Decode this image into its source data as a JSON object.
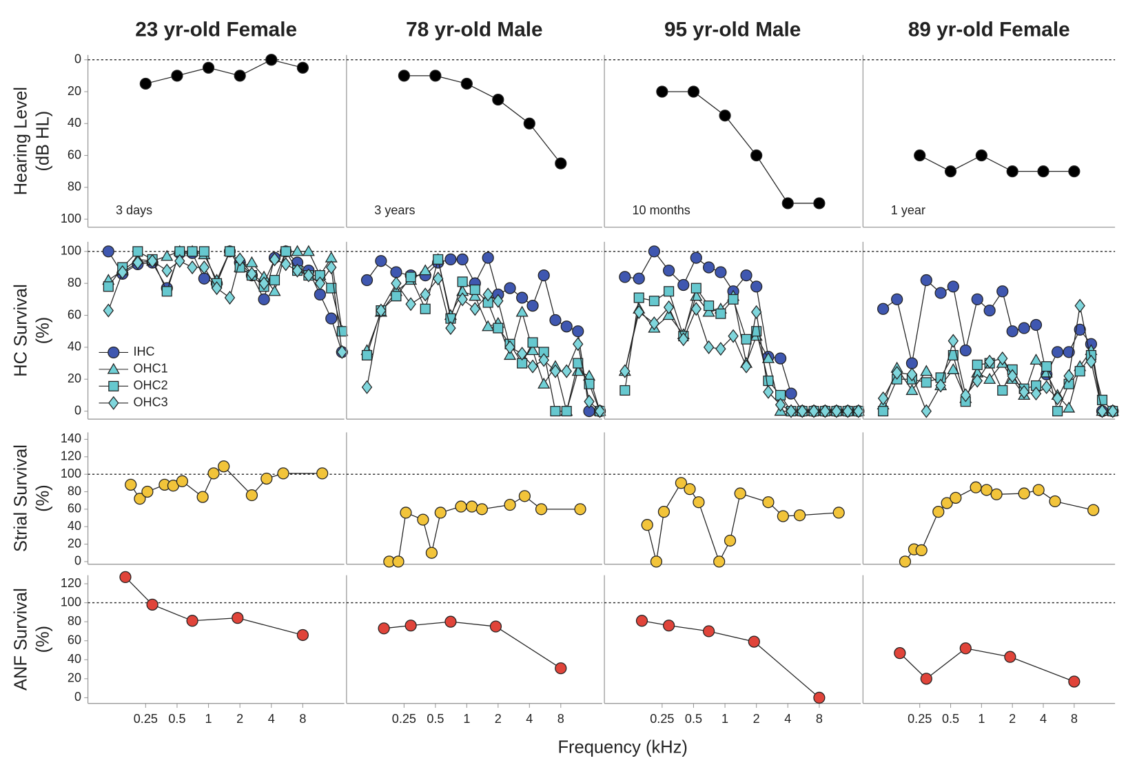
{
  "figure": {
    "xlabel": "Frequency (kHz)"
  },
  "chart_data": [
    {
      "type": "line",
      "title": "23 yr-old Female",
      "ylabel": [
        "Hearing Level",
        "(dB HL)"
      ],
      "annotation": "3 days",
      "xscale": "log",
      "xlim": [
        0.07,
        20
      ],
      "ylim": [
        105,
        -3
      ],
      "yticks": [
        0,
        20,
        40,
        60,
        80,
        100
      ],
      "hline": 0,
      "x": [
        0.25,
        0.5,
        1,
        2,
        4,
        8
      ],
      "series": [
        {
          "color": "#000000",
          "marker": "circle",
          "values": [
            15,
            10,
            5,
            10,
            0,
            5
          ]
        }
      ]
    },
    {
      "type": "line",
      "title": "78 yr-old Male",
      "annotation": "3 years",
      "xscale": "log",
      "xlim": [
        0.07,
        20
      ],
      "ylim": [
        105,
        -3
      ],
      "hline": 0,
      "x": [
        0.25,
        0.5,
        1,
        2,
        4,
        8
      ],
      "series": [
        {
          "color": "#000000",
          "marker": "circle",
          "values": [
            10,
            10,
            15,
            25,
            40,
            65
          ]
        }
      ]
    },
    {
      "type": "line",
      "title": "95 yr-old Male",
      "annotation": "10 months",
      "xscale": "log",
      "xlim": [
        0.07,
        20
      ],
      "ylim": [
        105,
        -3
      ],
      "hline": 0,
      "x": [
        0.25,
        0.5,
        1,
        2,
        4,
        8
      ],
      "series": [
        {
          "color": "#000000",
          "marker": "circle",
          "values": [
            20,
            20,
            35,
            60,
            90,
            90
          ]
        }
      ]
    },
    {
      "type": "line",
      "title": "89 yr-old Female",
      "annotation": "1 year",
      "xscale": "log",
      "xlim": [
        0.07,
        20
      ],
      "ylim": [
        105,
        -3
      ],
      "hline": 0,
      "x": [
        0.25,
        0.5,
        1,
        2,
        4,
        8
      ],
      "series": [
        {
          "color": "#000000",
          "marker": "circle",
          "values": [
            60,
            70,
            60,
            70,
            70,
            70
          ]
        }
      ]
    },
    {
      "type": "line",
      "ylabel": [
        "HC Survival",
        "(%)"
      ],
      "legend": "lower left",
      "xscale": "log",
      "xlim": [
        0.07,
        20
      ],
      "ylim": [
        -5,
        106
      ],
      "yticks": [
        0,
        20,
        40,
        60,
        80,
        100
      ],
      "hline": 100,
      "x": [
        0.11,
        0.15,
        0.21,
        0.29,
        0.4,
        0.53,
        0.7,
        0.91,
        1.2,
        1.6,
        2,
        2.6,
        3.4,
        4.3,
        5.5,
        7.1,
        9.1,
        11.7,
        15,
        19
      ],
      "series": [
        {
          "name": "IHC",
          "color": "#3f57b0",
          "marker": "circle",
          "values": [
            100,
            86,
            92,
            93,
            77,
            99,
            99,
            83,
            80,
            100,
            93,
            85,
            70,
            96,
            100,
            93,
            88,
            73,
            58,
            37
          ]
        },
        {
          "name": "OHC1",
          "color": "#6fd0d6",
          "marker": "triangle",
          "values": [
            82,
            88,
            95,
            94,
            97,
            100,
            100,
            98,
            82,
            100,
            90,
            93,
            84,
            75,
            100,
            100,
            100,
            85,
            96,
            50
          ]
        },
        {
          "name": "OHC2",
          "color": "#66c8cf",
          "marker": "square",
          "values": [
            78,
            90,
            100,
            95,
            75,
            100,
            100,
            100,
            80,
            100,
            90,
            85,
            78,
            82,
            100,
            88,
            85,
            85,
            77,
            50
          ]
        },
        {
          "name": "OHC3",
          "color": "#7fd6dc",
          "marker": "diamond",
          "values": [
            63,
            87,
            93,
            94,
            88,
            94,
            90,
            90,
            77,
            71,
            95,
            86,
            80,
            95,
            92,
            88,
            85,
            80,
            90,
            37
          ]
        }
      ]
    },
    {
      "type": "line",
      "xscale": "log",
      "xlim": [
        0.07,
        20
      ],
      "ylim": [
        -5,
        106
      ],
      "hline": 100,
      "x": [
        0.11,
        0.15,
        0.21,
        0.29,
        0.4,
        0.53,
        0.7,
        0.91,
        1.2,
        1.6,
        2,
        2.6,
        3.4,
        4.3,
        5.5,
        7.1,
        9.1,
        11.7,
        15,
        19
      ],
      "series": [
        {
          "name": "IHC",
          "color": "#3f57b0",
          "marker": "circle",
          "values": [
            82,
            94,
            87,
            85,
            85,
            93,
            95,
            95,
            80,
            96,
            73,
            77,
            71,
            66,
            85,
            57,
            53,
            50,
            0,
            0
          ]
        },
        {
          "name": "OHC1",
          "color": "#6fd0d6",
          "marker": "triangle",
          "values": [
            38,
            62,
            75,
            82,
            88,
            95,
            60,
            75,
            72,
            53,
            55,
            35,
            62,
            38,
            17,
            28,
            0,
            25,
            22,
            0
          ]
        },
        {
          "name": "OHC2",
          "color": "#66c8cf",
          "marker": "square",
          "values": [
            35,
            63,
            72,
            84,
            64,
            95,
            58,
            81,
            76,
            68,
            52,
            42,
            30,
            43,
            37,
            0,
            0,
            30,
            17,
            0
          ]
        },
        {
          "name": "OHC3",
          "color": "#7fd6dc",
          "marker": "diamond",
          "values": [
            15,
            63,
            80,
            67,
            73,
            83,
            52,
            70,
            64,
            73,
            69,
            40,
            36,
            28,
            32,
            25,
            25,
            42,
            6,
            0
          ]
        }
      ]
    },
    {
      "type": "line",
      "xscale": "log",
      "xlim": [
        0.07,
        20
      ],
      "ylim": [
        -5,
        106
      ],
      "hline": 100,
      "x": [
        0.11,
        0.15,
        0.21,
        0.29,
        0.4,
        0.53,
        0.7,
        0.91,
        1.2,
        1.6,
        2,
        2.6,
        3.4,
        4.3,
        5.5,
        7.1,
        9.1,
        11.7,
        15,
        19
      ],
      "series": [
        {
          "name": "IHC",
          "color": "#3f57b0",
          "marker": "circle",
          "values": [
            84,
            83,
            100,
            88,
            79,
            96,
            90,
            87,
            75,
            85,
            78,
            34,
            33,
            11,
            0,
            0,
            0,
            0,
            0,
            0
          ]
        },
        {
          "name": "OHC1",
          "color": "#6fd0d6",
          "marker": "triangle",
          "values": [
            25,
            64,
            52,
            60,
            48,
            72,
            62,
            64,
            72,
            30,
            47,
            33,
            0,
            0,
            0,
            0,
            0,
            0,
            0,
            0
          ]
        },
        {
          "name": "OHC2",
          "color": "#66c8cf",
          "marker": "square",
          "values": [
            13,
            71,
            69,
            75,
            47,
            77,
            66,
            61,
            70,
            45,
            50,
            19,
            10,
            0,
            0,
            0,
            0,
            0,
            0,
            0
          ]
        },
        {
          "name": "OHC3",
          "color": "#7fd6dc",
          "marker": "diamond",
          "values": [
            25,
            62,
            55,
            65,
            45,
            64,
            40,
            39,
            47,
            28,
            62,
            12,
            4,
            0,
            0,
            0,
            0,
            0,
            0,
            0
          ]
        }
      ]
    },
    {
      "type": "line",
      "xscale": "log",
      "xlim": [
        0.07,
        20
      ],
      "ylim": [
        -5,
        106
      ],
      "hline": 100,
      "x": [
        0.11,
        0.15,
        0.21,
        0.29,
        0.4,
        0.53,
        0.7,
        0.91,
        1.2,
        1.6,
        2,
        2.6,
        3.4,
        4.3,
        5.5,
        7.1,
        9.1,
        11.7,
        15,
        19
      ],
      "series": [
        {
          "name": "IHC",
          "color": "#3f57b0",
          "marker": "circle",
          "values": [
            64,
            70,
            30,
            82,
            74,
            78,
            38,
            70,
            63,
            75,
            50,
            52,
            54,
            23,
            37,
            37,
            51,
            42,
            0,
            0
          ]
        },
        {
          "name": "OHC1",
          "color": "#6fd0d6",
          "marker": "triangle",
          "values": [
            4,
            27,
            13,
            25,
            16,
            26,
            8,
            24,
            20,
            30,
            20,
            10,
            32,
            24,
            10,
            2,
            28,
            38,
            0,
            0
          ]
        },
        {
          "name": "OHC2",
          "color": "#66c8cf",
          "marker": "square",
          "values": [
            0,
            20,
            20,
            18,
            21,
            35,
            6,
            29,
            30,
            13,
            26,
            14,
            16,
            28,
            0,
            17,
            25,
            35,
            7,
            0
          ]
        },
        {
          "name": "OHC3",
          "color": "#7fd6dc",
          "marker": "diamond",
          "values": [
            8,
            24,
            23,
            0,
            16,
            44,
            10,
            19,
            31,
            33,
            22,
            12,
            11,
            15,
            8,
            22,
            66,
            31,
            0,
            0
          ]
        }
      ]
    },
    {
      "type": "line",
      "ylabel": [
        "Strial Survival",
        "(%)"
      ],
      "xscale": "log",
      "xlim": [
        0.07,
        20
      ],
      "ylim": [
        -3,
        148
      ],
      "yticks": [
        0,
        20,
        40,
        60,
        80,
        100,
        120,
        140
      ],
      "hline": 100,
      "x": [
        0.18,
        0.22,
        0.26,
        0.38,
        0.46,
        0.56,
        0.88,
        1.12,
        1.4,
        2.6,
        3.6,
        5.2,
        12.3
      ],
      "series": [
        {
          "color": "#f2c43a",
          "marker": "circle",
          "values": [
            88,
            72,
            80,
            88,
            87,
            92,
            74,
            101,
            109,
            76,
            95,
            101,
            101
          ]
        }
      ]
    },
    {
      "type": "line",
      "xscale": "log",
      "xlim": [
        0.07,
        20
      ],
      "ylim": [
        -3,
        148
      ],
      "hline": 100,
      "x": [
        0.18,
        0.22,
        0.26,
        0.38,
        0.46,
        0.56,
        0.88,
        1.12,
        1.4,
        2.6,
        3.6,
        5.2,
        12.3
      ],
      "series": [
        {
          "color": "#f2c43a",
          "marker": "circle",
          "values": [
            0,
            0,
            56,
            48,
            10,
            56,
            63,
            63,
            60,
            65,
            75,
            60,
            60
          ]
        }
      ]
    },
    {
      "type": "line",
      "xscale": "log",
      "xlim": [
        0.07,
        20
      ],
      "ylim": [
        -3,
        148
      ],
      "hline": 100,
      "x": [
        0.18,
        0.22,
        0.26,
        0.38,
        0.46,
        0.56,
        0.88,
        1.12,
        1.4,
        2.6,
        3.6,
        5.2,
        12.3
      ],
      "series": [
        {
          "color": "#f2c43a",
          "marker": "circle",
          "values": [
            42,
            0,
            57,
            90,
            83,
            68,
            0,
            24,
            78,
            68,
            52,
            53,
            56
          ]
        }
      ]
    },
    {
      "type": "line",
      "xscale": "log",
      "xlim": [
        0.07,
        20
      ],
      "ylim": [
        -3,
        148
      ],
      "hline": 100,
      "x": [
        0.18,
        0.22,
        0.26,
        0.38,
        0.46,
        0.56,
        0.88,
        1.12,
        1.4,
        2.6,
        3.6,
        5.2,
        12.3
      ],
      "series": [
        {
          "color": "#f2c43a",
          "marker": "circle",
          "values": [
            0,
            14,
            13,
            57,
            67,
            73,
            85,
            82,
            77,
            78,
            82,
            69,
            59
          ]
        }
      ]
    },
    {
      "type": "line",
      "ylabel": [
        "ANF Survival",
        "(%)"
      ],
      "xscale": "log",
      "xlim": [
        0.07,
        20
      ],
      "ylim": [
        -6,
        129
      ],
      "yticks": [
        0,
        20,
        40,
        60,
        80,
        100,
        120
      ],
      "xticks": [
        0.25,
        0.5,
        1,
        2,
        4,
        8
      ],
      "hline": 100,
      "x": [
        0.16,
        0.29,
        0.7,
        1.9,
        8
      ],
      "series": [
        {
          "color": "#e0443a",
          "marker": "circle",
          "values": [
            127,
            98,
            81,
            84,
            66
          ]
        }
      ]
    },
    {
      "type": "line",
      "xscale": "log",
      "xlim": [
        0.07,
        20
      ],
      "ylim": [
        -6,
        129
      ],
      "xticks": [
        0.25,
        0.5,
        1,
        2,
        4,
        8
      ],
      "hline": 100,
      "x": [
        0.16,
        0.29,
        0.7,
        1.9,
        8
      ],
      "series": [
        {
          "color": "#e0443a",
          "marker": "circle",
          "values": [
            73,
            76,
            80,
            75,
            31
          ]
        }
      ]
    },
    {
      "type": "line",
      "xscale": "log",
      "xlim": [
        0.07,
        20
      ],
      "ylim": [
        -6,
        129
      ],
      "xticks": [
        0.25,
        0.5,
        1,
        2,
        4,
        8
      ],
      "hline": 100,
      "x": [
        0.16,
        0.29,
        0.7,
        1.9,
        8
      ],
      "series": [
        {
          "color": "#e0443a",
          "marker": "circle",
          "values": [
            81,
            76,
            70,
            59,
            0
          ]
        }
      ]
    },
    {
      "type": "line",
      "xscale": "log",
      "xlim": [
        0.07,
        20
      ],
      "ylim": [
        -6,
        129
      ],
      "xticks": [
        0.25,
        0.5,
        1,
        2,
        4,
        8
      ],
      "hline": 100,
      "x": [
        0.16,
        0.29,
        0.7,
        1.9,
        8
      ],
      "series": [
        {
          "color": "#e0443a",
          "marker": "circle",
          "values": [
            47,
            20,
            52,
            43,
            17
          ]
        }
      ]
    }
  ]
}
